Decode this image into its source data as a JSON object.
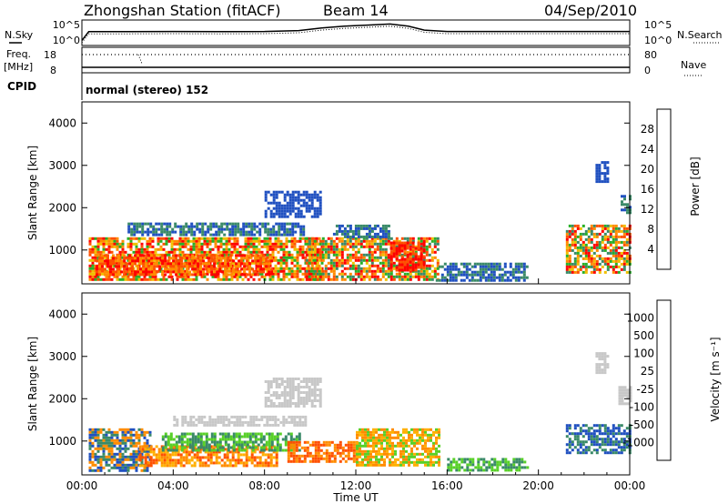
{
  "header": {
    "station": "Zhongshan Station (fitACF)",
    "beam": "Beam 14",
    "date": "04/Sep/2010",
    "mode": "normal (stereo) 152"
  },
  "side_labels": {
    "nsky": "N.Sky",
    "freq_line1": "Freq.",
    "freq_line2": "[MHz]",
    "cpid": "CPID",
    "nsearch": "N.Search",
    "nave": "Nave"
  },
  "chart_data": [
    {
      "type": "line",
      "name": "noise-panel",
      "left_ticks": [
        "10^5",
        "10^0"
      ],
      "right_ticks": [
        "10^5",
        "10^0"
      ],
      "series_shape": [
        {
          "hour": 0.0,
          "level": 0.15
        },
        {
          "hour": 0.3,
          "level": 0.55
        },
        {
          "hour": 2,
          "level": 0.55
        },
        {
          "hour": 4,
          "level": 0.56
        },
        {
          "hour": 6,
          "level": 0.55
        },
        {
          "hour": 8,
          "level": 0.56
        },
        {
          "hour": 9.5,
          "level": 0.6
        },
        {
          "hour": 10.5,
          "level": 0.72
        },
        {
          "hour": 11.5,
          "level": 0.8
        },
        {
          "hour": 12.5,
          "level": 0.85
        },
        {
          "hour": 13.5,
          "level": 0.9
        },
        {
          "hour": 14.3,
          "level": 0.8
        },
        {
          "hour": 15.0,
          "level": 0.62
        },
        {
          "hour": 16,
          "level": 0.56
        },
        {
          "hour": 20,
          "level": 0.56
        },
        {
          "hour": 24,
          "level": 0.56
        }
      ]
    },
    {
      "type": "line",
      "name": "frequency-nave-panel",
      "left_ticks": [
        18,
        8
      ],
      "right_ticks": [
        80,
        0
      ],
      "freq_mhz": 18,
      "nave_level": 0
    },
    {
      "type": "heatmap",
      "name": "power-panel",
      "ylabel": "Slant Range [km]",
      "yticks": [
        1000,
        2000,
        3000,
        4000
      ],
      "ylim": [
        200,
        4500
      ],
      "colorbar": {
        "label": "Power [dB]",
        "ticks": [
          "4",
          "8",
          "12",
          "16",
          "20",
          "24",
          "28"
        ],
        "colors": [
          "#0000ff",
          "#2050c0",
          "#3a8a68",
          "#28b028",
          "#f0c000",
          "#ff8c00",
          "#ff5000",
          "#ff0000"
        ]
      },
      "regions": [
        {
          "t0": 0.3,
          "t1": 10.5,
          "r0": 300,
          "r1": 1300,
          "c": [
            3,
            4,
            5,
            6,
            7
          ]
        },
        {
          "t0": 0.6,
          "t1": 8.3,
          "r0": 400,
          "r1": 900,
          "c": [
            5,
            6,
            7
          ]
        },
        {
          "t0": 2.0,
          "t1": 9.7,
          "r0": 1350,
          "r1": 1650,
          "c": [
            1,
            2
          ]
        },
        {
          "t0": 8.0,
          "t1": 10.4,
          "r0": 1800,
          "r1": 2400,
          "c": [
            1
          ]
        },
        {
          "t0": 9.8,
          "t1": 15.6,
          "r0": 300,
          "r1": 1300,
          "c": [
            2,
            3,
            4,
            5,
            6,
            7
          ]
        },
        {
          "t0": 11.0,
          "t1": 13.5,
          "r0": 1300,
          "r1": 1600,
          "c": [
            1,
            2
          ]
        },
        {
          "t0": 13.5,
          "t1": 15.0,
          "r0": 500,
          "r1": 1200,
          "c": [
            6,
            7
          ]
        },
        {
          "t0": 15.5,
          "t1": 19.5,
          "r0": 300,
          "r1": 700,
          "c": [
            1,
            2
          ]
        },
        {
          "t0": 21.2,
          "t1": 24.0,
          "r0": 500,
          "r1": 1600,
          "c": [
            2,
            3,
            4,
            5,
            6,
            7
          ]
        },
        {
          "t0": 22.5,
          "t1": 23.0,
          "r0": 2600,
          "r1": 3100,
          "c": [
            1
          ]
        },
        {
          "t0": 23.6,
          "t1": 24.0,
          "r0": 1900,
          "r1": 2300,
          "c": [
            1,
            2
          ]
        }
      ]
    },
    {
      "type": "heatmap",
      "name": "velocity-panel",
      "ylabel": "Slant Range [km]",
      "yticks": [
        1000,
        2000,
        3000,
        4000
      ],
      "ylim": [
        200,
        4500
      ],
      "xticks": [
        "00:00",
        "04:00",
        "08:00",
        "12:00",
        "16:00",
        "20:00",
        "00:00"
      ],
      "xlabel": "Time UT",
      "colorbar": {
        "label": "Velocity [m s⁻¹]",
        "ticks": [
          "-1000",
          "-500",
          "-100",
          "-25",
          "25",
          "100",
          "500",
          "1000"
        ],
        "colors": [
          "#ff0000",
          "#ff5000",
          "#ff8c00",
          "#ffb000",
          "#c8c8c8",
          "#58d028",
          "#3a8a68",
          "#2050c0",
          "#1830d0"
        ]
      },
      "regions": [
        {
          "t0": 0.3,
          "t1": 3.0,
          "r0": 300,
          "r1": 1300,
          "c": [
            7,
            6,
            2
          ]
        },
        {
          "t0": 2.5,
          "t1": 8.5,
          "r0": 400,
          "r1": 900,
          "c": [
            2,
            3,
            1
          ]
        },
        {
          "t0": 3.5,
          "t1": 9.5,
          "r0": 800,
          "r1": 1200,
          "c": [
            6,
            5
          ]
        },
        {
          "t0": 4.0,
          "t1": 9.8,
          "r0": 1350,
          "r1": 1600,
          "c": [
            4
          ]
        },
        {
          "t0": 8.0,
          "t1": 10.5,
          "r0": 1800,
          "r1": 2500,
          "c": [
            4
          ]
        },
        {
          "t0": 9.0,
          "t1": 12.0,
          "r0": 500,
          "r1": 1000,
          "c": [
            1,
            2
          ]
        },
        {
          "t0": 12.0,
          "t1": 15.7,
          "r0": 400,
          "r1": 1300,
          "c": [
            2,
            3,
            5
          ]
        },
        {
          "t0": 16.0,
          "t1": 19.5,
          "r0": 300,
          "r1": 600,
          "c": [
            5,
            6
          ]
        },
        {
          "t0": 21.2,
          "t1": 24.0,
          "r0": 700,
          "r1": 1400,
          "c": [
            6,
            7
          ]
        },
        {
          "t0": 22.5,
          "t1": 23.0,
          "r0": 2600,
          "r1": 3100,
          "c": [
            4
          ]
        },
        {
          "t0": 23.5,
          "t1": 24.0,
          "r0": 1900,
          "r1": 2300,
          "c": [
            4
          ]
        }
      ]
    }
  ]
}
